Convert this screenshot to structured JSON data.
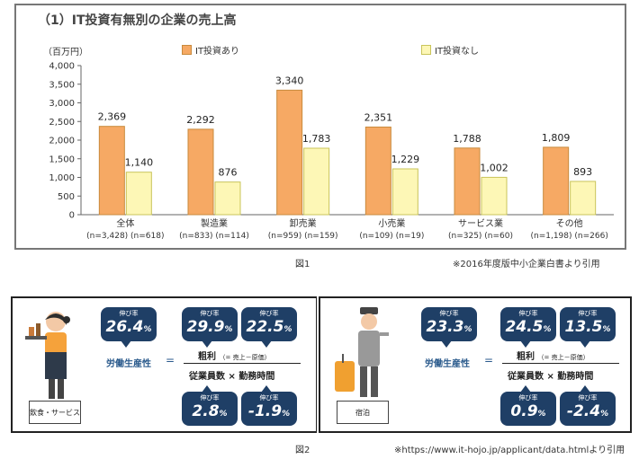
{
  "figure1": {
    "title": "（1）IT投資有無別の企業の売上高",
    "unit": "（百万円）",
    "caption": "図1",
    "source": "※2016年度版中小企業白書より引用"
  },
  "chart_data": {
    "type": "bar",
    "title": "（1）IT投資有無別の企業の売上高",
    "ylabel": "（百万円）",
    "ylim": [
      0,
      4000
    ],
    "yticks": [
      "0",
      "500",
      "1,000",
      "1,500",
      "2,000",
      "2,500",
      "3,000",
      "3,500",
      "4,000"
    ],
    "yticks_values": [
      0,
      500,
      1000,
      1500,
      2000,
      2500,
      3000,
      3500,
      4000
    ],
    "categories": [
      "全体",
      "製造業",
      "卸売業",
      "小売業",
      "サービス業",
      "その他"
    ],
    "category_n": [
      "(n=3,428) (n=618)",
      "(n=833) (n=114)",
      "(n=959) (n=159)",
      "(n=109) (n=19)",
      "(n=325) (n=60)",
      "(n=1,198) (n=266)"
    ],
    "series": [
      {
        "name": "IT投資あり",
        "color": "#f6a964",
        "values": [
          2369,
          2292,
          3340,
          2351,
          1788,
          1809
        ],
        "labels": [
          "2,369",
          "2,292",
          "3,340",
          "2,351",
          "1,788",
          "1,809"
        ]
      },
      {
        "name": "IT投資なし",
        "color": "#fdf7b6",
        "values": [
          1140,
          876,
          1783,
          1229,
          1002,
          893
        ],
        "labels": [
          "1,140",
          "876",
          "1,783",
          "1,229",
          "1,002",
          "893"
        ]
      }
    ],
    "legend": "top",
    "grid": false
  },
  "figure2": {
    "caption": "図2",
    "source": "※https://www.it-hojo.jp/applicant/data.htmlより引用",
    "growth_label": "伸び率",
    "productivity_label": "労働生産性",
    "equals": "=",
    "numerator": "粗利",
    "numerator_note": "（= 売上－原価）",
    "denominator": "従業員数 × 勤務時間",
    "panels": [
      {
        "tag": "飲食・サービス",
        "productivity": "26.4",
        "gross_profit": "29.9",
        "sales_cost": "22.5",
        "employees": "2.8",
        "hours": "-1.9",
        "percent": "%"
      },
      {
        "tag": "宿泊",
        "productivity": "23.3",
        "gross_profit": "24.5",
        "sales_cost": "13.5",
        "employees": "0.9",
        "hours": "-2.4",
        "percent": "%"
      }
    ]
  }
}
